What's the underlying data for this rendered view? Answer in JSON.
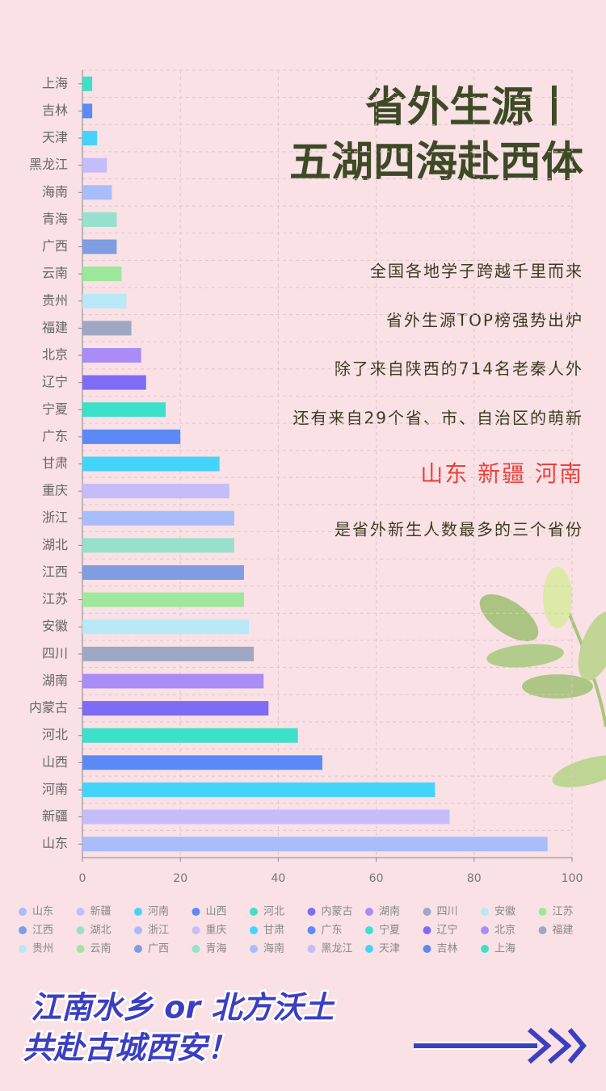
{
  "chart_data": {
    "type": "bar",
    "orientation": "horizontal",
    "categories": [
      "山东",
      "新疆",
      "河南",
      "山西",
      "河北",
      "内蒙古",
      "湖南",
      "四川",
      "安徽",
      "江苏",
      "江西",
      "湖北",
      "浙江",
      "重庆",
      "甘肃",
      "广东",
      "宁夏",
      "辽宁",
      "北京",
      "福建",
      "贵州",
      "云南",
      "广西",
      "青海",
      "海南",
      "黑龙江",
      "天津",
      "吉林",
      "上海"
    ],
    "values": [
      95,
      75,
      72,
      49,
      44,
      38,
      37,
      35,
      34,
      33,
      33,
      31,
      31,
      30,
      28,
      20,
      17,
      13,
      12,
      10,
      9,
      8,
      7,
      7,
      6,
      5,
      3,
      2,
      2
    ],
    "colors": [
      "#a8bdf9",
      "#c5bdf9",
      "#45d4f9",
      "#5b8af7",
      "#3de0c8",
      "#7e6cf5",
      "#a98cf5",
      "#9ea7c4",
      "#b9e8f7",
      "#9de89a",
      "#7f9de0",
      "#97e0cc",
      "#a8bdf9",
      "#c5bdf9",
      "#45d4f9",
      "#5b8af7",
      "#3de0c8",
      "#7e6cf5",
      "#a98cf5",
      "#9ea7c4",
      "#b9e8f7",
      "#9de89a",
      "#7f9de0",
      "#97e0cc",
      "#a8bdf9",
      "#c5bdf9",
      "#45d4f9",
      "#5b8af7",
      "#3de0c8"
    ],
    "xlim": [
      0,
      100
    ],
    "xticks": [
      0,
      20,
      40,
      60,
      80,
      100
    ],
    "grid": true,
    "legend": "bottom"
  },
  "title_lines": [
    "省外生源丨",
    "五湖四海赴西体"
  ],
  "text_lines": [
    "全国各地学子跨越千里而来",
    "省外生源TOP榜强势出炉",
    "除了来自陕西的714名老秦人外",
    "还有来自29个省、市、自治区的萌新"
  ],
  "highlight": "山东 新疆 河南",
  "closing_line": "是省外新生人数最多的三个省份",
  "slogan_lines": [
    "江南水乡 or 北方沃土",
    "共赴古城西安！"
  ]
}
